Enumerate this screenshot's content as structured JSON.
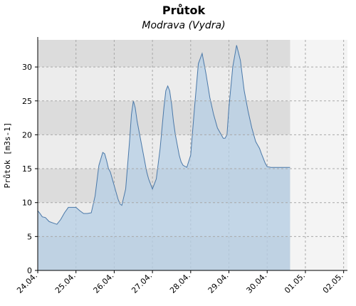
{
  "chart_data": {
    "type": "area",
    "title": "Průtok",
    "subtitle": "Modrava (Vydra)",
    "xlabel": "",
    "ylabel": "Průtok [m3s-1]",
    "ylim": [
      0,
      34
    ],
    "yticks": [
      0,
      5,
      10,
      15,
      20,
      25,
      30
    ],
    "xlim": [
      0,
      8.1
    ],
    "x_tick_labels": [
      "24.04.",
      "25.04.",
      "26.04.",
      "27.04.",
      "28.04.",
      "29.04.",
      "30.04.",
      "01.05.",
      "02.05."
    ],
    "grid": true,
    "legend": "none",
    "colors": {
      "fill": "#b6cfe6",
      "line": "#4a78a8",
      "band_dark": "#dcdcdc",
      "band_light": "#ececec",
      "plot_bg_future": "#f4f4f4",
      "grid": "#a8a8a8"
    },
    "series": [
      {
        "x": [
          0.0,
          0.06,
          0.12,
          0.2,
          0.3,
          0.4,
          0.5,
          0.6,
          0.7,
          0.8,
          0.9,
          1.0,
          1.1,
          1.2,
          1.3,
          1.4,
          1.5,
          1.6,
          1.7,
          1.75,
          1.8,
          1.85,
          1.9,
          1.95,
          2.0,
          2.05,
          2.1,
          2.15,
          2.2,
          2.3,
          2.4,
          2.45,
          2.5,
          2.55,
          2.6,
          2.65,
          2.7,
          2.75,
          2.8,
          2.85,
          2.9,
          3.0,
          3.1,
          3.2,
          3.3,
          3.35,
          3.4,
          3.45,
          3.5,
          3.55,
          3.6,
          3.65,
          3.7,
          3.75,
          3.8,
          3.9,
          4.0,
          4.1,
          4.2,
          4.3,
          4.4,
          4.5,
          4.6,
          4.7,
          4.75,
          4.8,
          4.85,
          4.9,
          4.95,
          5.0,
          5.1,
          5.2,
          5.3,
          5.4,
          5.5,
          5.6,
          5.7,
          5.75,
          5.8,
          5.85,
          5.9,
          5.95,
          6.0,
          6.1,
          6.2,
          6.3,
          6.4,
          6.5,
          6.6
        ],
        "values": [
          8.8,
          8.4,
          7.9,
          7.8,
          7.2,
          7.0,
          6.8,
          7.5,
          8.5,
          9.3,
          9.3,
          9.3,
          8.8,
          8.4,
          8.4,
          8.5,
          11.0,
          15.5,
          17.4,
          17.2,
          16.2,
          15.0,
          14.5,
          13.5,
          12.5,
          11.5,
          10.5,
          9.8,
          9.6,
          12.0,
          19.0,
          23.0,
          25.0,
          24.0,
          22.0,
          20.5,
          19.0,
          17.5,
          16.0,
          14.5,
          13.5,
          12.0,
          13.5,
          18.0,
          24.0,
          26.5,
          27.2,
          26.5,
          24.5,
          22.0,
          20.0,
          18.5,
          17.0,
          16.0,
          15.5,
          15.2,
          17.0,
          24.0,
          30.5,
          32.0,
          29.0,
          25.5,
          23.0,
          21.0,
          20.5,
          20.0,
          19.5,
          19.5,
          20.0,
          24.0,
          30.0,
          33.2,
          31.0,
          26.5,
          23.5,
          21.0,
          19.0,
          18.5,
          18.0,
          17.2,
          16.5,
          15.8,
          15.3,
          15.2,
          15.2,
          15.2,
          15.2,
          15.2,
          15.2
        ]
      }
    ]
  }
}
